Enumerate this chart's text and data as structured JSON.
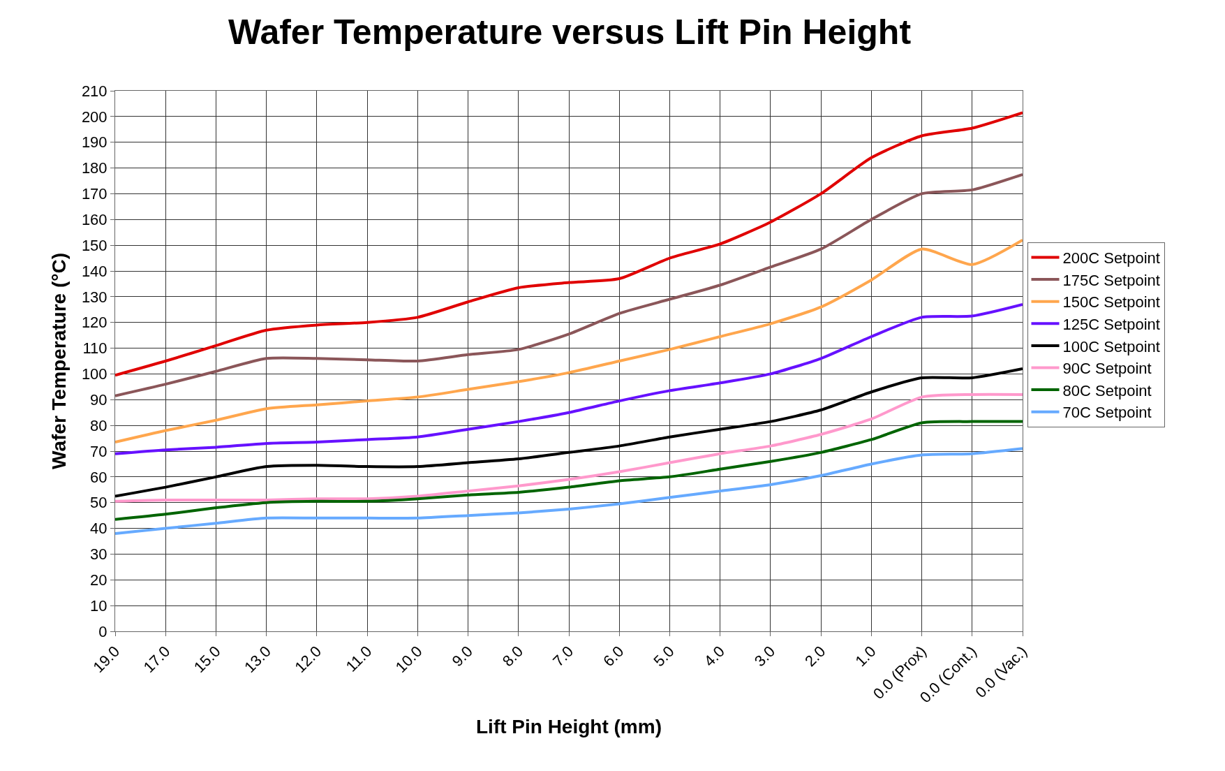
{
  "chart_data": {
    "type": "line",
    "title": "Wafer Temperature versus Lift Pin Height",
    "xlabel": "Lift Pin Height (mm)",
    "ylabel": "Wafer Temperature (°C)",
    "categories": [
      "19.0",
      "17.0",
      "15.0",
      "13.0",
      "12.0",
      "11.0",
      "10.0",
      "9.0",
      "8.0",
      "7.0",
      "6.0",
      "5.0",
      "4.0",
      "3.0",
      "2.0",
      "1.0",
      "0.0 (Prox)",
      "0.0 (Cont.)",
      "0.0 (Vac.)"
    ],
    "series": [
      {
        "name": "200C Setpoint",
        "color": "#e00000",
        "values": [
          99.5,
          105,
          111,
          117,
          119,
          120,
          122,
          128,
          133.5,
          135.5,
          137,
          145,
          150.5,
          159,
          170,
          184,
          192.5,
          195.5,
          201.5
        ]
      },
      {
        "name": "175C Setpoint",
        "color": "#8b5659",
        "values": [
          91.5,
          96,
          101,
          106,
          106,
          105.5,
          105,
          107.5,
          109.5,
          115.5,
          123.5,
          129,
          134.5,
          141.5,
          148.5,
          160,
          170,
          171.5,
          177.5
        ]
      },
      {
        "name": "150C Setpoint",
        "color": "#ffa64d",
        "values": [
          73.5,
          78,
          82,
          86.5,
          88,
          89.5,
          91,
          94,
          97,
          100.5,
          105,
          109.5,
          114.5,
          119.5,
          126,
          136.5,
          148.5,
          142.5,
          152
        ]
      },
      {
        "name": "125C Setpoint",
        "color": "#6611ff",
        "values": [
          69,
          70.5,
          71.5,
          73,
          73.5,
          74.5,
          75.5,
          78.5,
          81.5,
          85,
          89.5,
          93.5,
          96.5,
          100,
          106,
          114.5,
          122,
          122.5,
          127
        ]
      },
      {
        "name": "100C Setpoint",
        "color": "#000000",
        "values": [
          52.5,
          56,
          60,
          64,
          64.5,
          64,
          64,
          65.5,
          67,
          69.5,
          72,
          75.5,
          78.5,
          81.5,
          86,
          93,
          98.5,
          98.5,
          102
        ]
      },
      {
        "name": "90C Setpoint",
        "color": "#ff99cc",
        "values": [
          50.5,
          51,
          51,
          51,
          51.5,
          51.5,
          52.5,
          54.5,
          56.5,
          59,
          62,
          65.5,
          69,
          72,
          76.5,
          82.5,
          91,
          92,
          92
        ]
      },
      {
        "name": "80C Setpoint",
        "color": "#006400",
        "values": [
          43.5,
          45.5,
          48,
          50,
          50.5,
          50.5,
          51.5,
          53,
          54,
          56,
          58.5,
          60,
          63,
          66,
          69.5,
          74.5,
          81,
          81.5,
          81.5
        ]
      },
      {
        "name": "70C Setpoint",
        "color": "#66aaff",
        "values": [
          38,
          40,
          42,
          44,
          44,
          44,
          44,
          45,
          46,
          47.5,
          49.5,
          52,
          54.5,
          57,
          60.5,
          65,
          68.5,
          69,
          71
        ]
      }
    ],
    "ylim": [
      0,
      210
    ],
    "yticks": [
      0,
      10,
      20,
      30,
      40,
      50,
      60,
      70,
      80,
      90,
      100,
      110,
      120,
      130,
      140,
      150,
      160,
      170,
      180,
      190,
      200,
      210
    ],
    "grid": true,
    "legend": "right",
    "marker": "none",
    "line_style": "solid"
  }
}
